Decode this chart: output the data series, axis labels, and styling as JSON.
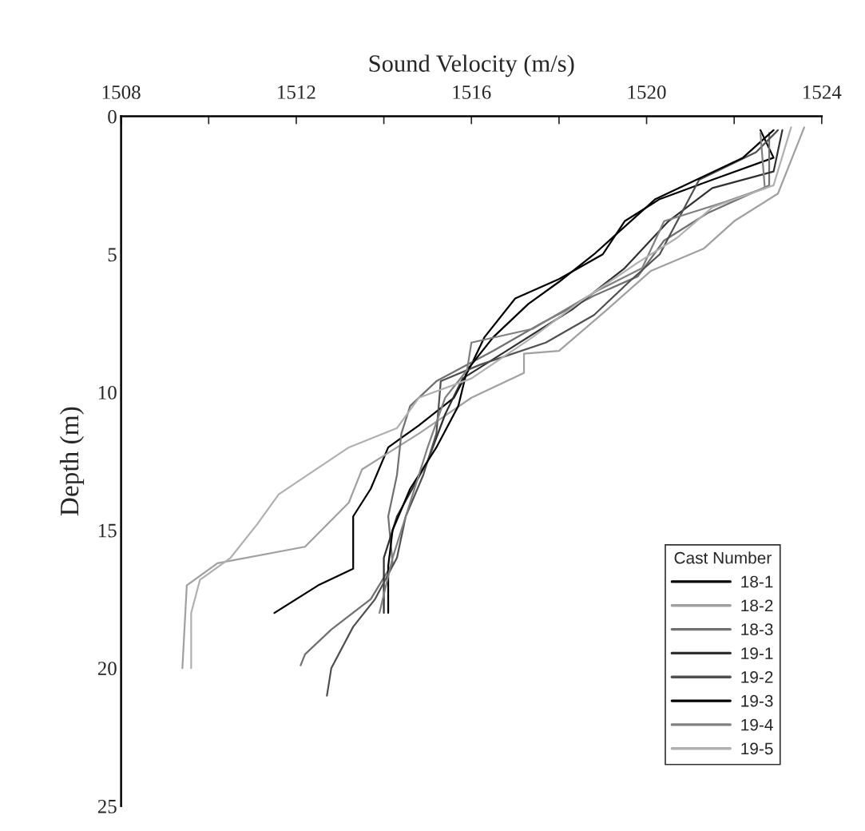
{
  "chart_data": {
    "type": "line",
    "xlabel": "Sound Velocity (m/s)",
    "ylabel": "Depth (m)",
    "legend_title": "Cast Number",
    "legend": "bottom right",
    "grid": false,
    "marker": "none",
    "line_style": "solid",
    "xlim": [
      1508,
      1524
    ],
    "xticks": [
      1508,
      {
        "value": 1510,
        "label": null
      },
      1512,
      {
        "value": 1514,
        "label": null
      },
      1516,
      {
        "value": 1518,
        "label": null
      },
      1520,
      {
        "value": 1522,
        "label": null
      },
      1524
    ],
    "ylim": [
      25,
      0
    ],
    "yticks": [
      0,
      5,
      10,
      15,
      20,
      25
    ],
    "series": [
      {
        "name": "18-1",
        "color": "#000000",
        "x": [
          1522.6,
          1522.9,
          1521.5,
          1520.3,
          1519.5,
          1519.0,
          1518.0,
          1517.0,
          1516.3,
          1516.0,
          1515.6,
          1514.8,
          1514.1,
          1513.7,
          1513.3,
          1513.3,
          1512.5,
          1511.5
        ],
        "values": [
          0.5,
          1.5,
          2.3,
          3.0,
          3.8,
          5.0,
          5.9,
          6.6,
          8.0,
          9.0,
          10.2,
          11.2,
          12.0,
          13.5,
          14.5,
          16.4,
          17.0,
          18.0
        ]
      },
      {
        "name": "18-2",
        "color": "#a0a0a0",
        "x": [
          1523.6,
          1523.0,
          1522.0,
          1521.3,
          1520.1,
          1519.1,
          1518.0,
          1517.2,
          1517.2,
          1516.0,
          1514.8,
          1513.5,
          1513.2,
          1512.2,
          1510.2,
          1509.5,
          1509.4
        ],
        "values": [
          0.4,
          2.8,
          3.8,
          4.8,
          5.6,
          7.0,
          8.5,
          8.6,
          9.3,
          10.2,
          11.5,
          12.8,
          14.0,
          15.6,
          16.2,
          17.0,
          20.0
        ]
      },
      {
        "name": "18-3",
        "color": "#707070",
        "x": [
          1522.8,
          1522.8,
          1521.4,
          1520.4,
          1519.8,
          1518.8,
          1517.6,
          1516.5,
          1515.2,
          1514.6,
          1514.4,
          1514.3,
          1514.1,
          1514.2,
          1513.7,
          1512.8,
          1512.2,
          1512.1
        ],
        "values": [
          0.6,
          2.5,
          3.5,
          4.5,
          5.8,
          6.5,
          7.5,
          8.5,
          9.6,
          10.5,
          11.5,
          13.0,
          14.5,
          16.2,
          17.5,
          18.6,
          19.5,
          19.9
        ]
      },
      {
        "name": "19-1",
        "color": "#303030",
        "x": [
          1523.1,
          1522.9,
          1521.5,
          1520.5,
          1519.5,
          1518.3,
          1516.8,
          1515.8,
          1515.4,
          1515.0,
          1514.3,
          1514.0,
          1514.0
        ],
        "values": [
          0.5,
          2.0,
          2.6,
          3.8,
          5.5,
          7.0,
          8.5,
          9.5,
          10.8,
          12.5,
          14.5,
          16.0,
          18.0
        ]
      },
      {
        "name": "19-2",
        "color": "#505050",
        "x": [
          1523.0,
          1522.5,
          1521.2,
          1520.8,
          1520.3,
          1519.6,
          1518.8,
          1517.7,
          1516.2,
          1515.3,
          1515.2,
          1514.9,
          1514.5,
          1514.3,
          1513.8,
          1513.3,
          1512.8,
          1512.7
        ],
        "values": [
          0.5,
          1.3,
          2.3,
          3.5,
          5.0,
          6.0,
          7.2,
          8.2,
          9.0,
          9.6,
          11.5,
          13.0,
          14.5,
          16.0,
          17.5,
          18.5,
          20.0,
          21.0
        ]
      },
      {
        "name": "19-3",
        "color": "#000000",
        "x": [
          1522.9,
          1522.2,
          1520.2,
          1518.8,
          1518.0,
          1517.3,
          1516.5,
          1515.9,
          1515.7,
          1515.2,
          1514.6,
          1514.2,
          1514.1,
          1514.1
        ],
        "values": [
          0.5,
          1.5,
          3.0,
          5.0,
          6.0,
          6.8,
          8.0,
          9.2,
          10.5,
          12.0,
          13.5,
          15.0,
          16.3,
          18.0
        ]
      },
      {
        "name": "19-4",
        "color": "#808080",
        "x": [
          1522.6,
          1522.7,
          1521.8,
          1520.4,
          1519.9,
          1518.9,
          1517.4,
          1516.0,
          1515.9,
          1515.4,
          1515.0,
          1514.6,
          1514.2,
          1513.9
        ],
        "values": [
          0.6,
          2.6,
          3.1,
          3.8,
          5.5,
          6.3,
          7.7,
          8.2,
          9.2,
          10.2,
          12.0,
          14.0,
          16.0,
          18.0
        ]
      },
      {
        "name": "19-5",
        "color": "#b0b0b0",
        "x": [
          1523.3,
          1522.9,
          1521.5,
          1520.7,
          1519.8,
          1518.5,
          1517.4,
          1516.0,
          1514.8,
          1514.3,
          1513.2,
          1511.6,
          1511.1,
          1510.5,
          1509.8,
          1509.6,
          1509.6
        ],
        "values": [
          0.4,
          2.5,
          3.3,
          4.4,
          5.3,
          6.7,
          8.0,
          9.5,
          10.2,
          11.3,
          12.0,
          13.7,
          14.8,
          16.0,
          16.8,
          18.0,
          20.0
        ]
      }
    ]
  }
}
